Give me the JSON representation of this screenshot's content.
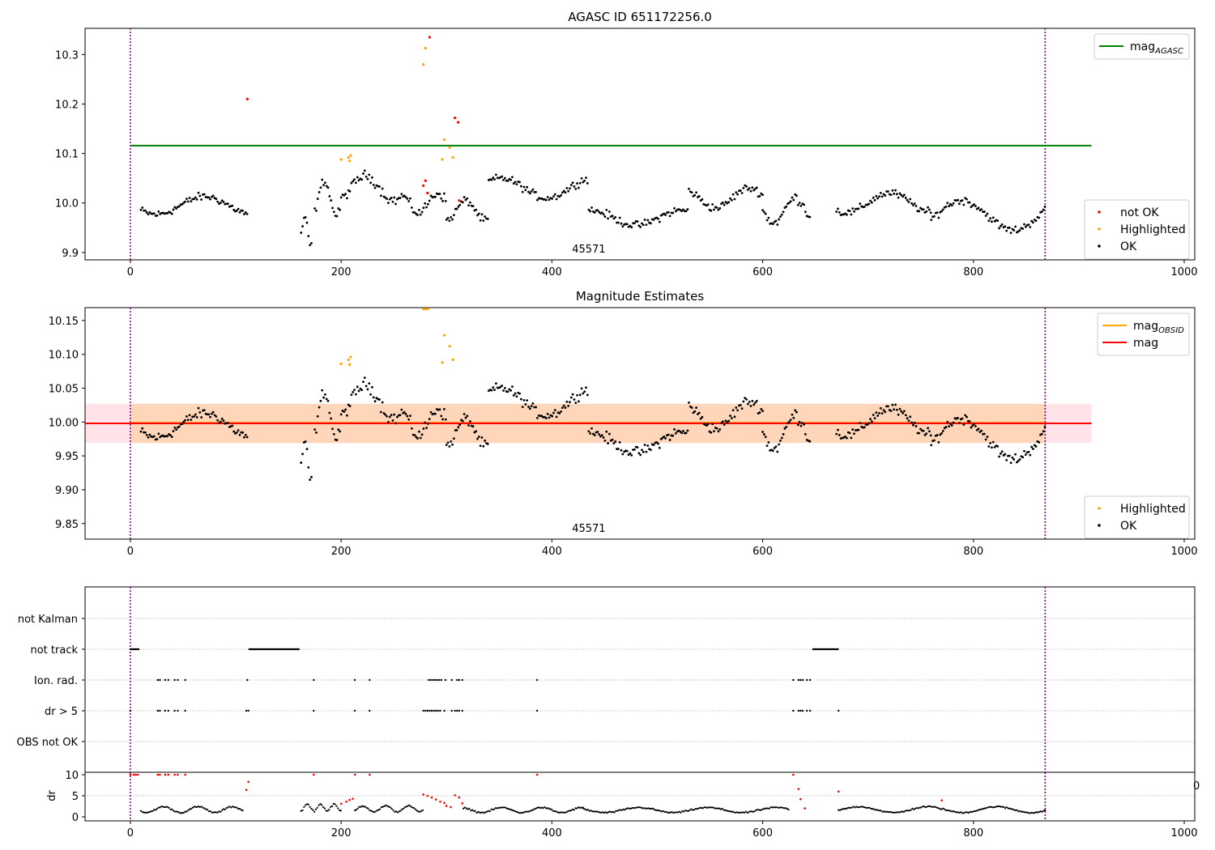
{
  "figure": {
    "title": "AGASC ID 651172256.0"
  },
  "chart_data": [
    {
      "type": "scatter",
      "panel": "top",
      "title": "AGASC ID 651172256.0",
      "xlabel": "",
      "ylabel": "",
      "xlim": [
        -43,
        1010
      ],
      "ylim": [
        9.885,
        10.353
      ],
      "xticks": [
        "0",
        "200",
        "400",
        "600",
        "800",
        "1000"
      ],
      "yticks": [
        "9.9",
        "10.0",
        "10.1",
        "10.2",
        "10.3"
      ],
      "obsid_label": "45571",
      "obsid_label_x": 435,
      "vlines_x": [
        0,
        868
      ],
      "vline_color": "#800080",
      "reference_line": {
        "name": "mag$_{AGASC}$",
        "display": "mag",
        "subscript": "AGASC",
        "value": 10.116,
        "x_range": [
          0,
          912
        ],
        "color": "#008000"
      },
      "legends": [
        {
          "position": "upper right",
          "entries": [
            {
              "label": "mag",
              "subscript": "AGASC",
              "type": "line",
              "color": "#008000"
            }
          ]
        },
        {
          "position": "lower right",
          "entries": [
            {
              "label": "not OK",
              "type": "marker",
              "color": "#ff0000"
            },
            {
              "label": "Highlighted",
              "type": "marker",
              "color": "#ffa500"
            },
            {
              "label": "OK",
              "type": "marker",
              "color": "#000000"
            }
          ]
        }
      ],
      "series": [
        {
          "name": "not OK",
          "color": "#ff0000",
          "points": [
            [
              111,
              10.21
            ],
            [
              278,
              10.035
            ],
            [
              280,
              10.045
            ],
            [
              282,
              10.02
            ],
            [
              284,
              10.335
            ],
            [
              308,
              10.172
            ],
            [
              311,
              10.163
            ],
            [
              312,
              10.005
            ]
          ]
        },
        {
          "name": "Highlighted",
          "color": "#ffa500",
          "points": [
            [
              200,
              10.088
            ],
            [
              207,
              10.092
            ],
            [
              209,
              10.096
            ],
            [
              208,
              10.085
            ],
            [
              278,
              10.28
            ],
            [
              280,
              10.313
            ],
            [
              296,
              10.088
            ],
            [
              298,
              10.128
            ],
            [
              303,
              10.112
            ],
            [
              306,
              10.092
            ]
          ]
        },
        {
          "name": "OK",
          "color": "#000000",
          "segments": [
            {
              "x": [
                10,
                111
              ],
              "base": 9.995,
              "amp": 0.018,
              "noise": 0.012
            },
            {
              "x": [
                162,
                172
              ],
              "base": 9.96,
              "amp": 0.02,
              "noise": 0.015,
              "dip": -0.03
            },
            {
              "x": [
                175,
                200
              ],
              "base": 10.01,
              "amp": 0.035,
              "noise": 0.012
            },
            {
              "x": [
                200,
                260
              ],
              "base": 10.03,
              "amp": 0.025,
              "noise": 0.015
            },
            {
              "x": [
                260,
                300
              ],
              "base": 10.0,
              "amp": 0.02,
              "noise": 0.015
            },
            {
              "x": [
                300,
                340
              ],
              "base": 9.985,
              "amp": 0.02,
              "noise": 0.012
            },
            {
              "x": [
                340,
                435
              ],
              "base": 10.03,
              "amp": 0.02,
              "noise": 0.012
            },
            {
              "x": [
                435,
                530
              ],
              "base": 9.97,
              "amp": 0.015,
              "noise": 0.012
            },
            {
              "x": [
                530,
                600
              ],
              "base": 10.01,
              "amp": 0.02,
              "noise": 0.012
            },
            {
              "x": [
                600,
                645
              ],
              "base": 9.985,
              "amp": 0.025,
              "noise": 0.015
            },
            {
              "x": [
                670,
                760
              ],
              "base": 10.0,
              "amp": 0.02,
              "noise": 0.012
            },
            {
              "x": [
                760,
                868
              ],
              "base": 9.975,
              "amp": 0.03,
              "noise": 0.012
            }
          ]
        }
      ]
    },
    {
      "type": "scatter",
      "panel": "middle",
      "title": "Magnitude Estimates",
      "xlabel": "",
      "ylabel": "",
      "xlim": [
        -43,
        1010
      ],
      "ylim": [
        9.827,
        10.169
      ],
      "xticks": [
        "0",
        "200",
        "400",
        "600",
        "800",
        "1000"
      ],
      "yticks": [
        "9.85",
        "9.90",
        "9.95",
        "10.00",
        "10.05",
        "10.10",
        "10.15"
      ],
      "obsid_label": "45571",
      "obsid_label_x": 435,
      "vlines_x": [
        0,
        868
      ],
      "vline_color": "#800080",
      "mag_line": {
        "name": "mag",
        "value": 9.998,
        "x_range": [
          -43,
          912
        ],
        "color": "#ff0000",
        "band": [
          9.969,
          10.027
        ],
        "band_color": "#ffc0cb"
      },
      "mag_obsid_line": {
        "name": "mag$_{OBSID}$",
        "value": 9.999,
        "x_range": [
          0,
          868
        ],
        "color": "#ffa500",
        "band": [
          9.969,
          10.027
        ]
      },
      "legends": [
        {
          "position": "upper right",
          "entries": [
            {
              "label": "mag",
              "subscript": "OBSID",
              "type": "line",
              "color": "#ffa500"
            },
            {
              "label": "mag",
              "type": "line",
              "color": "#ff0000"
            }
          ]
        },
        {
          "position": "lower right",
          "entries": [
            {
              "label": "Highlighted",
              "type": "marker",
              "color": "#ffa500"
            },
            {
              "label": "OK",
              "type": "marker",
              "color": "#000000"
            }
          ]
        }
      ],
      "series": [
        {
          "name": "Highlighted",
          "color": "#ffa500",
          "points": [
            [
              200,
              10.086
            ],
            [
              207,
              10.092
            ],
            [
              209,
              10.096
            ],
            [
              208,
              10.085
            ],
            [
              278,
              10.167
            ],
            [
              280,
              10.167
            ],
            [
              282,
              10.167
            ],
            [
              296,
              10.088
            ],
            [
              298,
              10.128
            ],
            [
              303,
              10.112
            ],
            [
              306,
              10.092
            ]
          ]
        },
        {
          "name": "OK",
          "color": "#000000",
          "same_as_panel": "top"
        }
      ]
    },
    {
      "type": "scatter",
      "panel": "flags",
      "xlim": [
        -43,
        1010
      ],
      "ycategories": [
        "not Kalman",
        "not track",
        "Ion. rad.",
        "dr > 5",
        "OBS not OK"
      ],
      "vlines_x": [
        0,
        868
      ],
      "flag_rows": [
        {
          "label": "not Kalman",
          "x": []
        },
        {
          "label": "not track",
          "x": [
            [
              0,
              8
            ],
            [
              113,
              160
            ],
            [
              648,
              672
            ]
          ]
        },
        {
          "label": "Ion. rad.",
          "x": [
            26,
            28,
            33,
            36,
            42,
            45,
            52,
            111,
            174,
            213,
            227,
            283,
            285,
            287,
            289,
            291,
            293,
            295,
            299,
            305,
            310,
            312,
            315,
            386,
            629,
            634,
            636,
            638,
            642,
            645
          ]
        },
        {
          "label": "dr > 5",
          "x": [
            0,
            26,
            28,
            33,
            36,
            42,
            45,
            52,
            110,
            112,
            174,
            213,
            227,
            278,
            280,
            282,
            284,
            286,
            288,
            290,
            292,
            294,
            298,
            305,
            308,
            310,
            312,
            315,
            386,
            629,
            634,
            636,
            638,
            642,
            645,
            672
          ]
        },
        {
          "label": "OBS not OK",
          "x": []
        }
      ]
    },
    {
      "type": "scatter",
      "panel": "dr",
      "xlim": [
        -43,
        1010
      ],
      "ylim": [
        -0.5,
        10.5
      ],
      "ylabel": "dr",
      "yticks": [
        "0",
        "5",
        "10"
      ],
      "xticks": [
        "0",
        "200",
        "400",
        "600",
        "800",
        "1000"
      ],
      "overflow_tick_label": "0",
      "vlines_x": [
        0,
        868
      ],
      "series": [
        {
          "name": "dr",
          "color": "#000000",
          "segments": [
            {
              "x": [
                10,
                108
              ],
              "base": 1.7,
              "amp": 0.7
            },
            {
              "x": [
                162,
                200
              ],
              "base": 2.2,
              "amp": 0.8
            },
            {
              "x": [
                213,
                278
              ],
              "base": 1.9,
              "amp": 0.7
            },
            {
              "x": [
                316,
                430
              ],
              "base": 1.6,
              "amp": 0.6
            },
            {
              "x": [
                430,
                625
              ],
              "base": 1.6,
              "amp": 0.6
            },
            {
              "x": [
                672,
                868
              ],
              "base": 1.7,
              "amp": 0.7
            }
          ]
        },
        {
          "name": "dr > 5",
          "color": "#ff0000",
          "points": [
            [
              0,
              10
            ],
            [
              3,
              10
            ],
            [
              5,
              10
            ],
            [
              7,
              10
            ],
            [
              26,
              10
            ],
            [
              28,
              10
            ],
            [
              33,
              10
            ],
            [
              36,
              10
            ],
            [
              42,
              10
            ],
            [
              45,
              10
            ],
            [
              52,
              10
            ],
            [
              110,
              6.4
            ],
            [
              112,
              8.3
            ],
            [
              174,
              10
            ],
            [
              200,
              3.1
            ],
            [
              205,
              3.6
            ],
            [
              208,
              4.0
            ],
            [
              211,
              4.3
            ],
            [
              213,
              10
            ],
            [
              227,
              10
            ],
            [
              278,
              5.3
            ],
            [
              282,
              5.0
            ],
            [
              286,
              4.6
            ],
            [
              290,
              4.1
            ],
            [
              294,
              3.6
            ],
            [
              298,
              3.3
            ],
            [
              300,
              2.6
            ],
            [
              304,
              2.3
            ],
            [
              308,
              5.1
            ],
            [
              312,
              4.6
            ],
            [
              315,
              3.2
            ],
            [
              386,
              10
            ],
            [
              629,
              10
            ],
            [
              634,
              6.6
            ],
            [
              636,
              4.2
            ],
            [
              640,
              2.0
            ],
            [
              672,
              6.0
            ],
            [
              770,
              3.9
            ]
          ]
        }
      ]
    }
  ]
}
